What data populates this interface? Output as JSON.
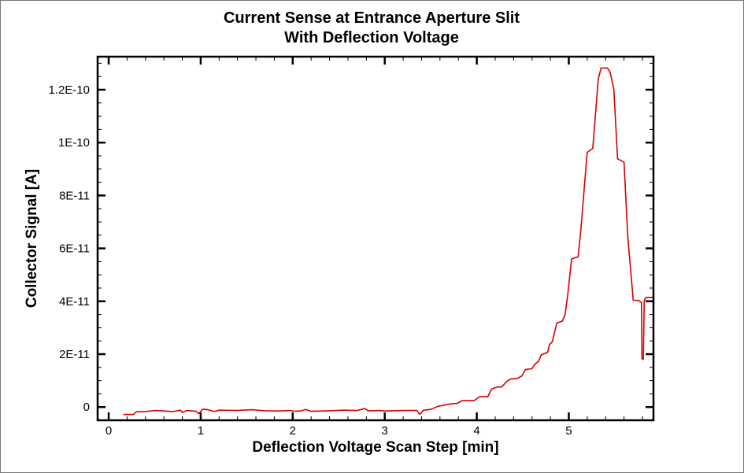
{
  "chart_data": {
    "type": "line",
    "title": [
      "Current Sense at Entrance Aperture Slit",
      "With Deflection Voltage"
    ],
    "xlabel": "Deflection Voltage Scan Step [min]",
    "ylabel": "Collector Signal [A]",
    "xlim": [
      -0.12,
      5.92
    ],
    "ylim": [
      -5e-12,
      1.325e-10
    ],
    "xticks": [
      0,
      1,
      2,
      3,
      4,
      5
    ],
    "xtick_labels": [
      "0",
      "1",
      "2",
      "3",
      "4",
      "5"
    ],
    "yticks": [
      0,
      2e-11,
      4e-11,
      6e-11,
      8e-11,
      1e-10,
      1.2e-10
    ],
    "ytick_labels": [
      "0",
      "2E-11",
      "4E-11",
      "6E-11",
      "8E-11",
      "1E-10",
      "1.2E-10"
    ],
    "grid": false,
    "line_color": "#d40000",
    "series": [
      {
        "x": [
          0.16,
          0.27,
          0.3,
          0.4,
          0.5,
          0.6,
          0.7,
          0.78,
          0.8,
          0.85,
          0.95,
          0.98,
          1.02,
          1.08,
          1.15,
          1.2,
          1.4,
          1.55,
          1.7,
          1.85,
          1.98,
          2.02,
          2.1,
          2.14,
          2.2,
          2.4,
          2.55,
          2.7,
          2.78,
          2.82,
          2.95,
          3.0,
          3.2,
          3.35,
          3.38,
          3.42,
          3.5,
          3.58,
          3.66,
          3.72,
          3.79,
          3.84,
          3.97,
          4.03,
          4.12,
          4.16,
          4.22,
          4.27,
          4.33,
          4.37,
          4.44,
          4.49,
          4.53,
          4.6,
          4.63,
          4.67,
          4.7,
          4.77,
          4.79,
          4.82,
          4.87,
          4.93,
          4.96,
          4.99,
          5.03,
          5.1,
          5.13,
          5.2,
          5.26,
          5.32,
          5.35,
          5.42,
          5.45,
          5.49,
          5.53,
          5.6,
          5.64,
          5.7,
          5.76,
          5.79,
          5.795,
          5.81,
          5.82,
          5.84,
          5.92
        ],
        "y": [
          -2.8e-12,
          -2.8e-12,
          -1.8e-12,
          -1.7e-12,
          -1.3e-12,
          -1.5e-12,
          -1.7e-12,
          -1.2e-12,
          -2e-12,
          -1.3e-12,
          -1.6e-12,
          -2.5e-12,
          -8e-13,
          -1e-12,
          -1.7e-12,
          -1.2e-12,
          -1.3e-12,
          -1e-12,
          -1.4e-12,
          -1.5e-12,
          -1.3e-12,
          -1.6e-12,
          -1.4e-12,
          -9e-13,
          -1.6e-12,
          -1.4e-12,
          -1.2e-12,
          -1.3e-12,
          -6e-13,
          -1.4e-12,
          -1.3e-12,
          -1.5e-12,
          -1.3e-12,
          -1.3e-12,
          -2.8e-12,
          -1.2e-12,
          -9e-13,
          3e-13,
          8e-13,
          1.2e-12,
          1.4e-12,
          2.4e-12,
          2.4e-12,
          3.9e-12,
          3.9e-12,
          6.8e-12,
          7.6e-12,
          7.6e-12,
          9.8e-12,
          1.06e-11,
          1.08e-11,
          1.18e-11,
          1.42e-11,
          1.45e-11,
          1.62e-11,
          1.72e-11,
          1.97e-11,
          2.07e-11,
          2.36e-11,
          2.46e-11,
          3.18e-11,
          3.25e-11,
          3.5e-11,
          4.29e-11,
          5.6e-11,
          5.68e-11,
          6.67e-11,
          9.63e-11,
          9.78e-11,
          1.24e-10,
          1.282e-10,
          1.282e-10,
          1.265e-10,
          1.201e-10,
          9.39e-11,
          9.26e-11,
          6.47e-11,
          4.04e-11,
          4.03e-11,
          3.95e-11,
          1.82e-11,
          1.81e-11,
          4.04e-11,
          4.14e-11,
          4.15e-11
        ]
      }
    ]
  }
}
